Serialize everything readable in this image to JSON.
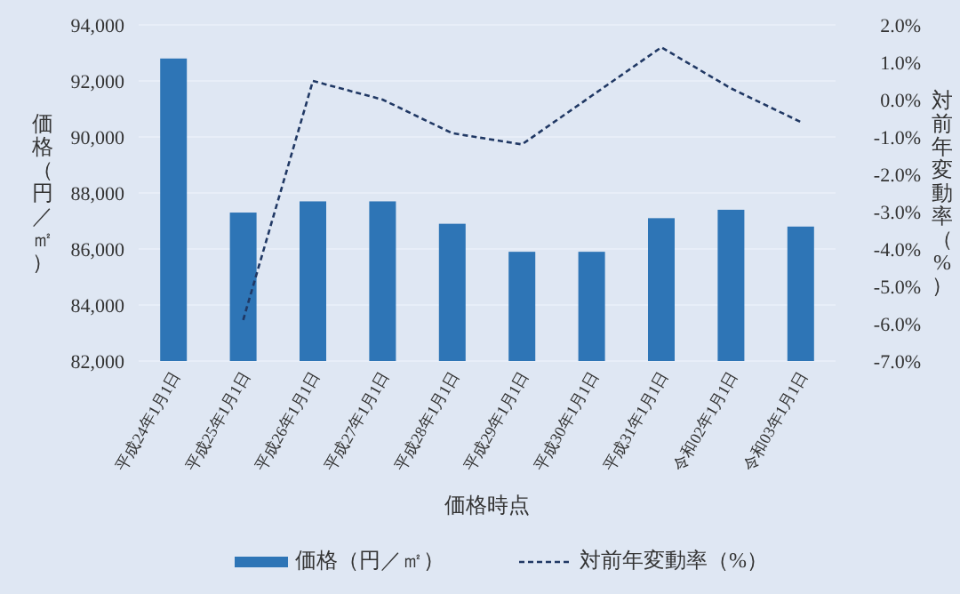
{
  "chart_data": {
    "type": "bar",
    "xlabel": "価格時点",
    "ylabel": "価格（円／㎡）",
    "y2label": "対前年変動率（%）",
    "categories": [
      "平成24年1月1日",
      "平成25年1月1日",
      "平成26年1月1日",
      "平成27年1月1日",
      "平成28年1月1日",
      "平成29年1月1日",
      "平成30年1月1日",
      "平成31年1月1日",
      "令和02年1月1日",
      "令和03年1月1日"
    ],
    "series": [
      {
        "name": "価格（円／㎡）",
        "color": "#2e75b6",
        "values": [
          92800,
          87300,
          87700,
          87700,
          86900,
          85900,
          85900,
          87100,
          87400,
          86800
        ]
      },
      {
        "name": "対前年変動率（%）",
        "type": "line",
        "axis": "y2",
        "color": "#203864",
        "line_style": "dashed",
        "values": [
          null,
          -5.9,
          0.5,
          0.0,
          -0.9,
          -1.2,
          0.1,
          1.4,
          0.3,
          -0.6
        ]
      }
    ],
    "ylim": [
      82000,
      94000
    ],
    "yticks": [
      {
        "value": 82000,
        "label": "82,000"
      },
      {
        "value": 84000,
        "label": "84,000"
      },
      {
        "value": 86000,
        "label": "86,000"
      },
      {
        "value": 88000,
        "label": "88,000"
      },
      {
        "value": 90000,
        "label": "90,000"
      },
      {
        "value": 92000,
        "label": "92,000"
      },
      {
        "value": 94000,
        "label": "94,000"
      }
    ],
    "y2lim": [
      -7,
      2
    ],
    "y2ticks": [
      {
        "value": -7,
        "label": "-7.0%"
      },
      {
        "value": -6,
        "label": "-6.0%"
      },
      {
        "value": -5,
        "label": "-5.0%"
      },
      {
        "value": -4,
        "label": "-4.0%"
      },
      {
        "value": -3,
        "label": "-3.0%"
      },
      {
        "value": -2,
        "label": "-2.0%"
      },
      {
        "value": -1,
        "label": "-1.0%"
      },
      {
        "value": 0,
        "label": "0.0%"
      },
      {
        "value": 1,
        "label": "1.0%"
      },
      {
        "value": 2,
        "label": "2.0%"
      }
    ],
    "grid": "y",
    "legend": "bottom"
  }
}
